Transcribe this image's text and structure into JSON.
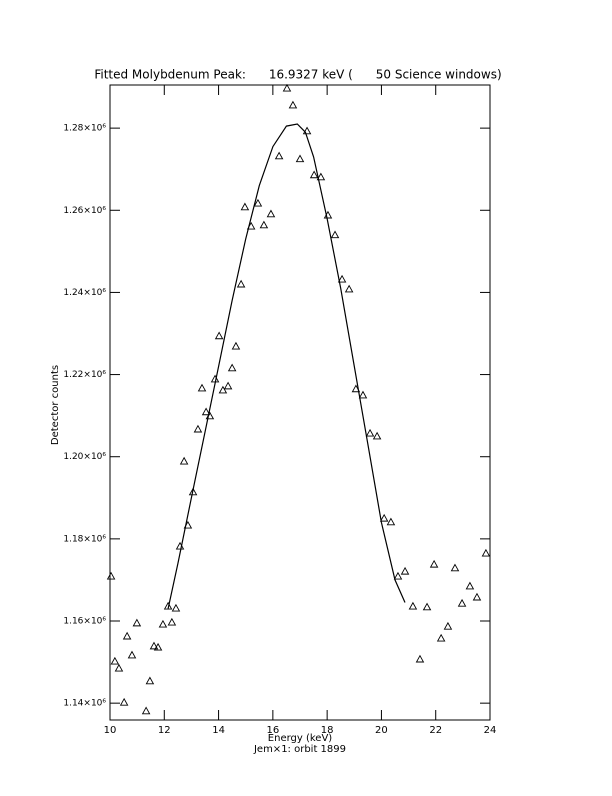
{
  "chart_data": {
    "type": "scatter",
    "title": "Fitted Molybdenum Peak:      16.9327 keV (      50 Science windows)",
    "xlabel": "Energy (keV)",
    "subtitle": "Jem×1: orbit 1899",
    "ylabel": "Detector counts",
    "xlim": [
      10,
      24
    ],
    "xticks": [
      10,
      12,
      14,
      16,
      18,
      20,
      22,
      24
    ],
    "ylim": [
      1135900,
      1290500
    ],
    "yticks": [
      {
        "value": 1140000,
        "label": "1.14×10⁶"
      },
      {
        "value": 1160000,
        "label": "1.16×10⁶"
      },
      {
        "value": 1180000,
        "label": "1.18×10⁶"
      },
      {
        "value": 1200000,
        "label": "1.20×10⁶"
      },
      {
        "value": 1220000,
        "label": "1.22×10⁶"
      },
      {
        "value": 1240000,
        "label": "1.24×10⁶"
      },
      {
        "value": 1260000,
        "label": "1.26×10⁶"
      },
      {
        "value": 1280000,
        "label": "1.28×10⁶"
      }
    ],
    "color": "#000000",
    "series": [
      {
        "style": "markers",
        "marker": "triangle",
        "x": [
          10.04,
          10.18,
          10.33,
          10.52,
          10.63,
          10.81,
          10.99,
          11.33,
          11.47,
          11.62,
          11.77,
          11.95,
          12.14,
          12.28,
          12.43,
          12.58,
          12.73,
          12.87,
          13.06,
          13.24,
          13.39,
          13.54,
          13.68,
          13.87,
          14.02,
          14.16,
          14.35,
          14.5,
          14.64,
          14.83,
          14.97,
          15.2,
          15.45,
          15.67,
          15.93,
          16.23,
          16.52,
          16.74,
          17.0,
          17.26,
          17.52,
          17.77,
          18.03,
          18.29,
          18.55,
          18.81,
          19.06,
          19.32,
          19.58,
          19.84,
          20.1,
          20.35,
          20.61,
          20.87,
          21.16,
          21.42,
          21.68,
          21.94,
          22.2,
          22.45,
          22.71,
          22.97,
          23.26,
          23.52,
          23.85
        ],
        "values": [
          1170900,
          1150200,
          1148500,
          1140200,
          1156300,
          1151700,
          1159500,
          1138100,
          1145400,
          1153900,
          1153600,
          1159200,
          1163600,
          1159700,
          1163100,
          1178200,
          1198900,
          1183300,
          1191400,
          1206700,
          1216700,
          1210900,
          1209900,
          1218900,
          1229400,
          1216200,
          1217200,
          1221600,
          1226900,
          1242000,
          1260800,
          1256100,
          1261700,
          1256400,
          1259100,
          1273200,
          1289700,
          1285600,
          1272500,
          1279300,
          1268600,
          1268100,
          1258800,
          1254000,
          1243200,
          1240800,
          1216500,
          1215000,
          1205700,
          1205000,
          1185000,
          1184100,
          1170900,
          1172100,
          1163600,
          1150700,
          1163400,
          1173800,
          1155800,
          1158700,
          1172900,
          1164300,
          1168500,
          1165800,
          1176500
        ]
      },
      {
        "style": "line",
        "x": [
          12.14,
          12.5,
          13,
          13.5,
          14,
          14.5,
          15,
          15.5,
          16,
          16.5,
          16.9,
          17.2,
          17.5,
          18,
          18.5,
          19,
          19.5,
          20,
          20.5,
          20.87
        ],
        "values": [
          1163000,
          1174000,
          1190000,
          1206000,
          1222000,
          1238000,
          1253000,
          1266000,
          1275500,
          1280500,
          1281000,
          1279000,
          1273000,
          1258000,
          1241000,
          1222000,
          1203000,
          1184000,
          1170000,
          1164500
        ]
      }
    ]
  }
}
